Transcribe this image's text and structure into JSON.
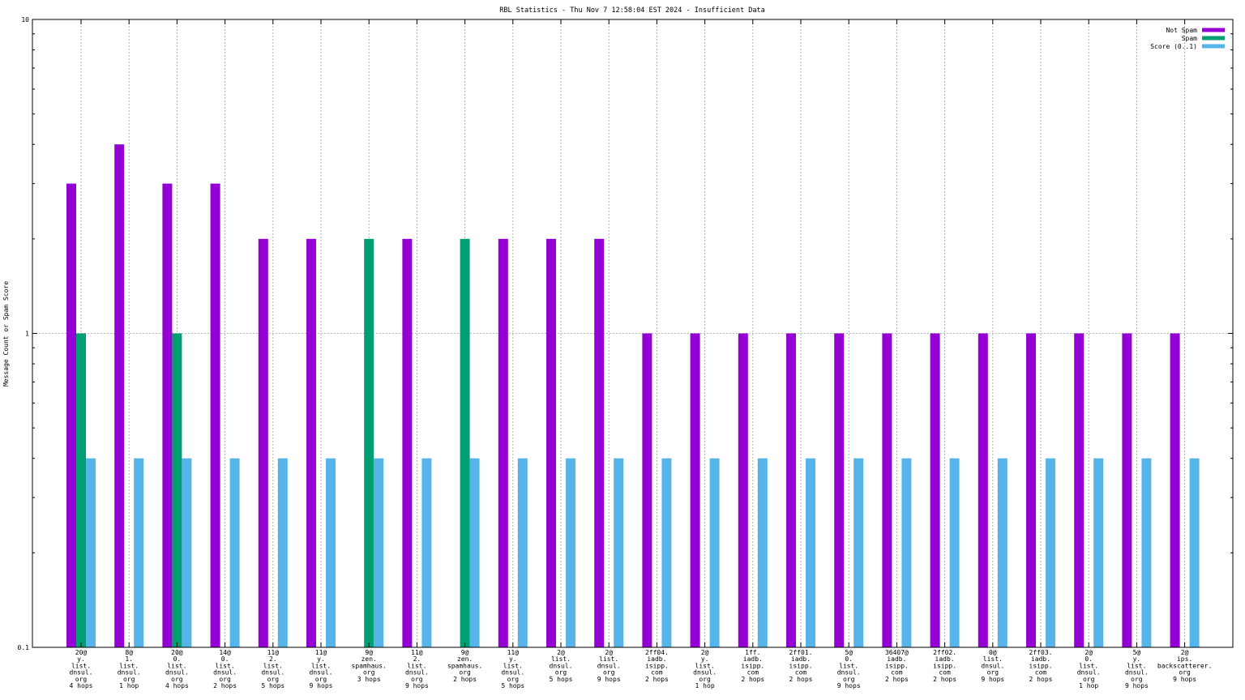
{
  "chart_data": {
    "type": "bar",
    "title": "RBL Statistics - Thu Nov  7 12:58:04 EST 2024 - Insufficient Data",
    "xlabel": "",
    "ylabel": "Message Count or Spam Score",
    "yscale": "log",
    "ylim": [
      0.1,
      10
    ],
    "yticks": [
      {
        "value": 0.1,
        "label": "0.1"
      },
      {
        "value": 1,
        "label": "1"
      },
      {
        "value": 10,
        "label": "10"
      }
    ],
    "grid": true,
    "legend_position": "top-right",
    "categories": [
      [
        "20@",
        "y.",
        "list.",
        "dnsul.",
        "org",
        "4 hops"
      ],
      [
        "8@",
        "1.",
        "list.",
        "dnsul.",
        "org",
        "1 hop"
      ],
      [
        "20@",
        "0.",
        "list.",
        "dnsul.",
        "org",
        "4 hops"
      ],
      [
        "14@",
        "0.",
        "list.",
        "dnsul.",
        "org",
        "2 hops"
      ],
      [
        "11@",
        "2.",
        "list.",
        "dnsul.",
        "org",
        "5 hops"
      ],
      [
        "11@",
        "y.",
        "list.",
        "dnsul.",
        "org",
        "9 hops"
      ],
      [
        "9@",
        "zen.",
        "spamhaus.",
        "org",
        "3 hops"
      ],
      [
        "11@",
        "2.",
        "list.",
        "dnsul.",
        "org",
        "9 hops"
      ],
      [
        "9@",
        "zen.",
        "spamhaus.",
        "org",
        "2 hops"
      ],
      [
        "11@",
        "y.",
        "list.",
        "dnsul.",
        "org",
        "5 hops"
      ],
      [
        "2@",
        "list.",
        "dnsul.",
        "org",
        "5 hops"
      ],
      [
        "2@",
        "list.",
        "dnsul.",
        "org",
        "9 hops"
      ],
      [
        "2ff04.",
        "iadb.",
        "isipp.",
        "com",
        "2 hops"
      ],
      [
        "2@",
        "y.",
        "list.",
        "dnsul.",
        "org",
        "1 hop"
      ],
      [
        "1ff.",
        "iadb.",
        "isipp.",
        "com",
        "2 hops"
      ],
      [
        "2ff01.",
        "iadb.",
        "isipp.",
        "com",
        "2 hops"
      ],
      [
        "5@",
        "0.",
        "list.",
        "dnsul.",
        "org",
        "9 hops"
      ],
      [
        "36407@",
        "iadb.",
        "isipp.",
        "com",
        "2 hops"
      ],
      [
        "2ff02.",
        "iadb.",
        "isipp.",
        "com",
        "2 hops"
      ],
      [
        "0@",
        "list.",
        "dnsul.",
        "org",
        "9 hops"
      ],
      [
        "2ff03.",
        "iadb.",
        "isipp.",
        "com",
        "2 hops"
      ],
      [
        "2@",
        "0.",
        "list.",
        "dnsul.",
        "org",
        "1 hop"
      ],
      [
        "5@",
        "y.",
        "list.",
        "dnsul.",
        "org",
        "9 hops"
      ],
      [
        "2@",
        "ips.",
        "backscatterer.",
        "org",
        "9 hops"
      ]
    ],
    "series": [
      {
        "name": "Not Spam",
        "color": "#9400d3",
        "values": [
          3,
          4,
          3,
          3,
          2,
          2,
          null,
          2,
          null,
          2,
          2,
          2,
          1,
          1,
          1,
          1,
          1,
          1,
          1,
          1,
          1,
          1,
          1,
          1
        ]
      },
      {
        "name": "Spam",
        "color": "#009e73",
        "values": [
          1,
          null,
          1,
          null,
          null,
          null,
          2,
          null,
          2,
          null,
          null,
          null,
          null,
          null,
          null,
          null,
          null,
          null,
          null,
          null,
          null,
          null,
          null,
          null
        ]
      },
      {
        "name": "Score (0..1)",
        "color": "#56b4e9",
        "values": [
          0.4,
          0.4,
          0.4,
          0.4,
          0.4,
          0.4,
          0.4,
          0.4,
          0.4,
          0.4,
          0.4,
          0.4,
          0.4,
          0.4,
          0.4,
          0.4,
          0.4,
          0.4,
          0.4,
          0.4,
          0.4,
          0.4,
          0.4,
          0.4
        ]
      }
    ]
  }
}
